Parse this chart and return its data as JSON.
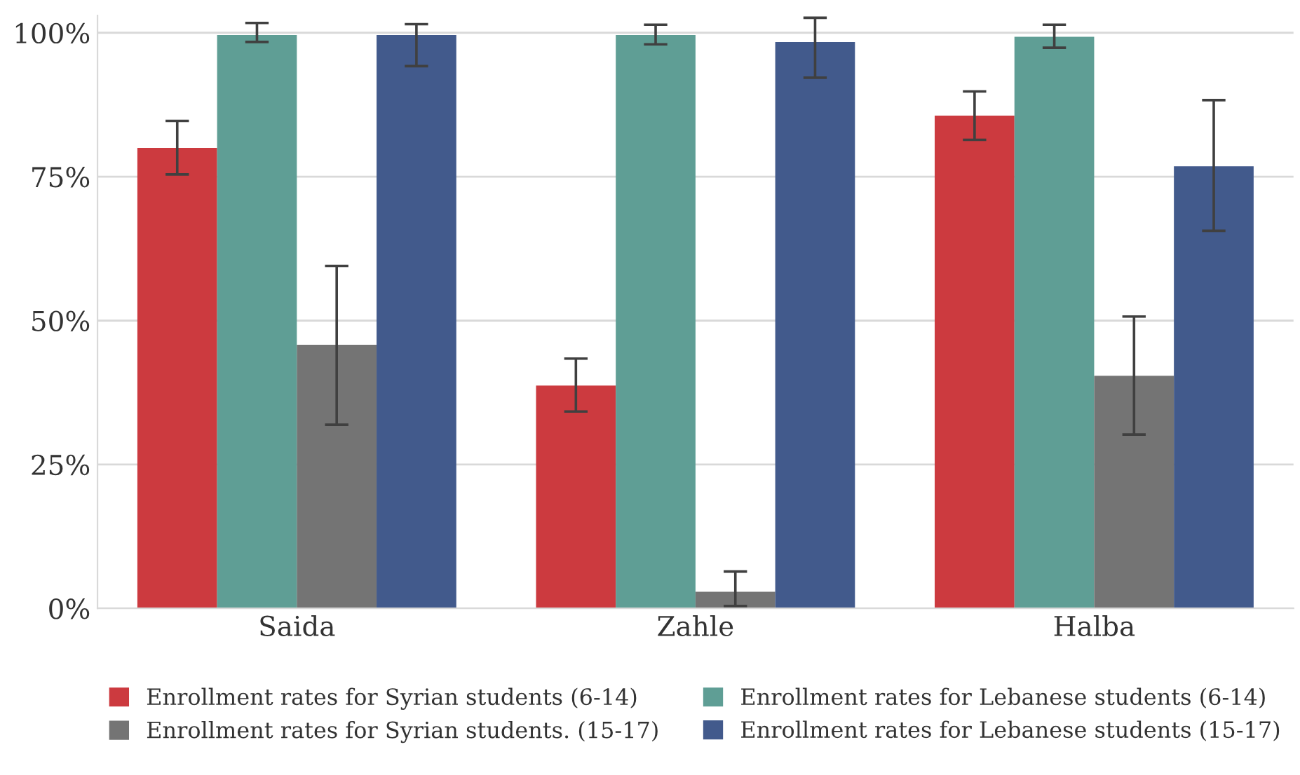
{
  "chart_data": {
    "type": "bar",
    "categories": [
      "Saida",
      "Zahle",
      "Halba"
    ],
    "series": [
      {
        "name": "Enrollment rates for Syrian students (6-14)",
        "color": "#cc3a3f",
        "values": [
          80.0,
          38.7,
          85.6
        ],
        "errors": [
          [
            75.4,
            84.7
          ],
          [
            34.2,
            43.4
          ],
          [
            81.4,
            89.8
          ]
        ]
      },
      {
        "name": "Enrollment rates for Lebanese students (6-14)",
        "color": "#5f9e95",
        "values": [
          99.6,
          99.6,
          99.3
        ],
        "errors": [
          [
            98.4,
            101.7
          ],
          [
            98.0,
            101.4
          ],
          [
            97.4,
            101.4
          ]
        ]
      },
      {
        "name": "Enrollment rates for Syrian students. (15-17)",
        "color": "#747474",
        "values": [
          45.8,
          2.9,
          40.4
        ],
        "errors": [
          [
            31.9,
            59.5
          ],
          [
            0.4,
            6.4
          ],
          [
            30.2,
            50.7
          ]
        ]
      },
      {
        "name": "Enrollment rates for Lebanese students (15-17)",
        "color": "#425a8c",
        "values": [
          99.6,
          98.4,
          76.8
        ],
        "errors": [
          [
            94.2,
            101.5
          ],
          [
            92.2,
            102.6
          ],
          [
            65.6,
            88.3
          ]
        ]
      }
    ],
    "ylim": [
      0,
      103
    ],
    "yticks": [
      {
        "value": 0,
        "label": "0%"
      },
      {
        "value": 25,
        "label": "25%"
      },
      {
        "value": 50,
        "label": "50%"
      },
      {
        "value": 75,
        "label": "75%"
      },
      {
        "value": 100,
        "label": "100%"
      }
    ],
    "grid": "y",
    "legend": "bottom"
  }
}
